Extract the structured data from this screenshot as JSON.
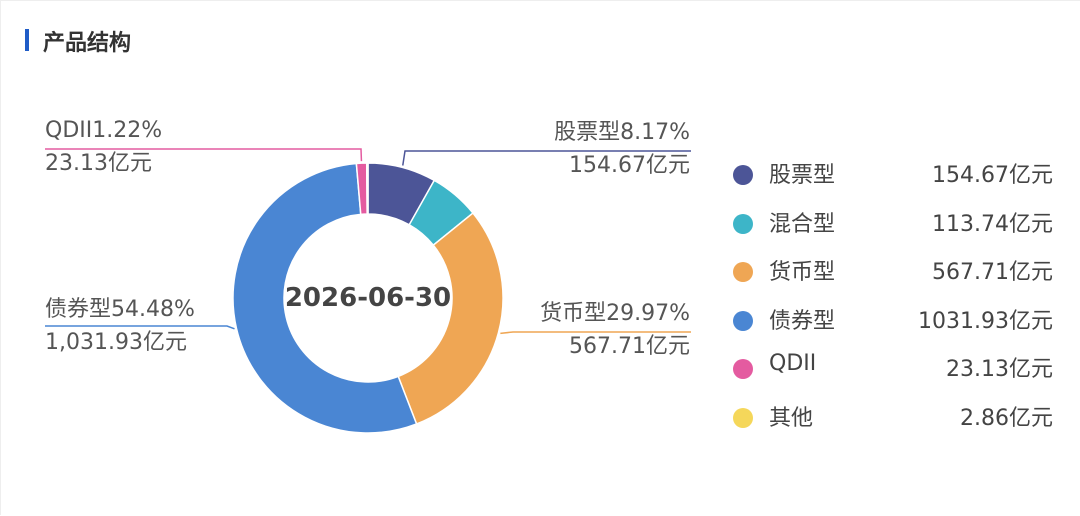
{
  "header": {
    "title": "产品结构"
  },
  "chart_data": {
    "type": "pie",
    "center_label": "2026-06-30",
    "categories": [
      "股票型",
      "混合型",
      "货币型",
      "债券型",
      "QDII",
      "其他"
    ],
    "values": [
      154.67,
      113.74,
      567.71,
      1031.93,
      23.13,
      2.86
    ],
    "unit": "亿元",
    "colors": [
      "#4c5597",
      "#3db5c8",
      "#efa654",
      "#4a86d3",
      "#e45ba0",
      "#f5d75a"
    ],
    "callouts": [
      {
        "name": "QDII1.22%",
        "value": "23.13亿元"
      },
      {
        "name": "股票型8.17%",
        "value": "154.67亿元"
      },
      {
        "name": "货币型29.97%",
        "value": "567.71亿元"
      },
      {
        "name": "债券型54.48%",
        "value": "1,031.93亿元"
      }
    ],
    "legend": [
      {
        "name": "股票型",
        "value": "154.67亿元"
      },
      {
        "name": "混合型",
        "value": "113.74亿元"
      },
      {
        "name": "货币型",
        "value": "567.71亿元"
      },
      {
        "name": "债券型",
        "value": "1031.93亿元"
      },
      {
        "name": "QDII",
        "value": "23.13亿元"
      },
      {
        "name": "其他",
        "value": "2.86亿元"
      }
    ],
    "legend_placement": "right"
  }
}
